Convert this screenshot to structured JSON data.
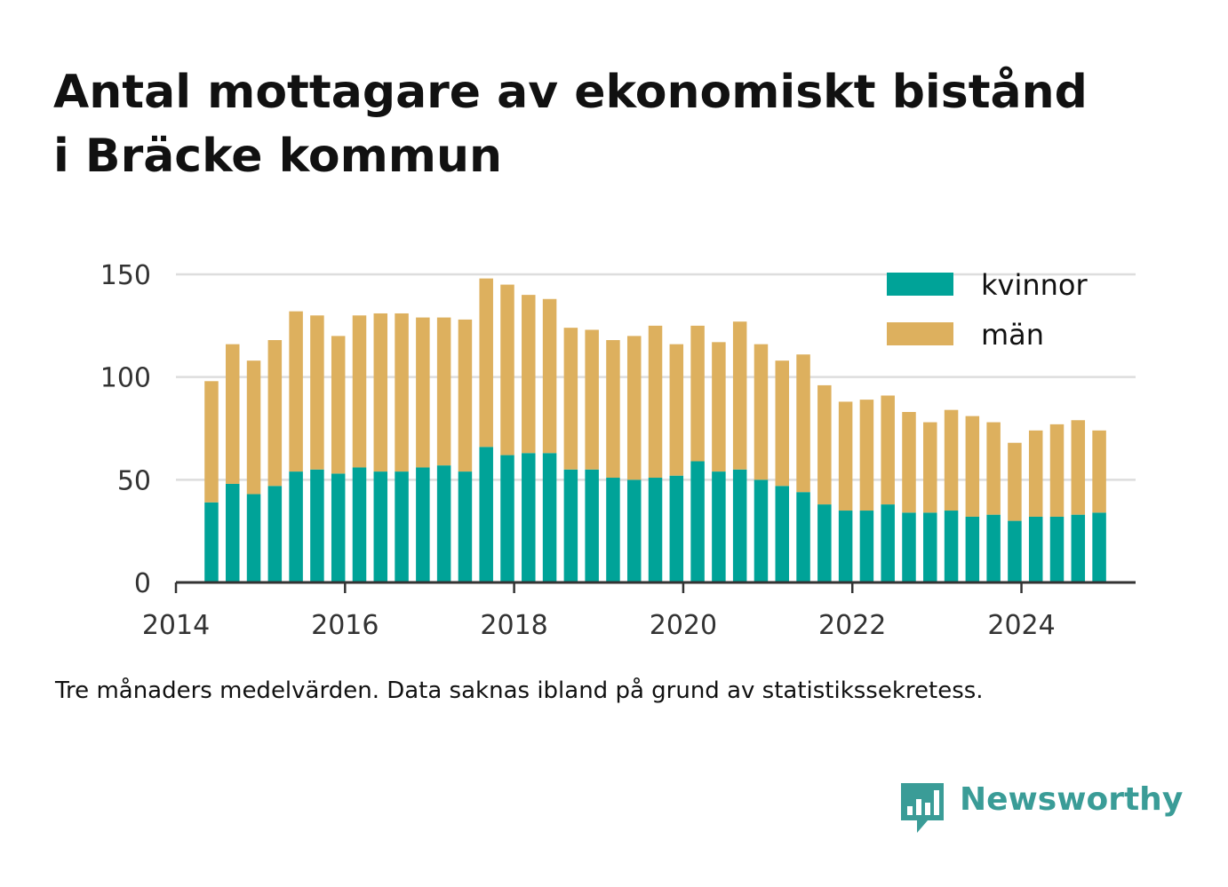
{
  "title_line1": "Antal mottagare av ekonomiskt bistånd",
  "title_line2": "i Bräcke kommun",
  "note": "Tre månaders medelvärden. Data saknas ibland på grund av statistikssekretess.",
  "brand": "Newsworthy",
  "chart_data": {
    "type": "bar",
    "stacked": true,
    "x": [
      2014.42,
      2014.67,
      2014.92,
      2015.17,
      2015.42,
      2015.67,
      2015.92,
      2016.17,
      2016.42,
      2016.67,
      2016.92,
      2017.17,
      2017.42,
      2017.67,
      2017.92,
      2018.17,
      2018.42,
      2018.67,
      2018.92,
      2019.17,
      2019.42,
      2019.67,
      2019.92,
      2020.17,
      2020.42,
      2020.67,
      2020.92,
      2021.17,
      2021.42,
      2021.67,
      2021.92,
      2022.17,
      2022.42,
      2022.67,
      2022.92,
      2023.17,
      2023.42,
      2023.67,
      2023.92,
      2024.17,
      2024.42,
      2024.67,
      2024.92
    ],
    "series": [
      {
        "name": "kvinnor",
        "color": "#00a398",
        "values": [
          39,
          48,
          43,
          47,
          54,
          55,
          53,
          56,
          54,
          54,
          56,
          57,
          54,
          66,
          62,
          63,
          63,
          55,
          55,
          51,
          50,
          51,
          52,
          59,
          54,
          55,
          50,
          47,
          44,
          38,
          35,
          35,
          38,
          34,
          34,
          35,
          32,
          33,
          30,
          32,
          32,
          33,
          34
        ]
      },
      {
        "name": "män",
        "color": "#ddb05e",
        "values": [
          59,
          68,
          65,
          71,
          78,
          75,
          67,
          74,
          77,
          77,
          73,
          72,
          74,
          82,
          83,
          77,
          75,
          69,
          68,
          67,
          70,
          74,
          64,
          66,
          63,
          72,
          66,
          61,
          67,
          58,
          53,
          54,
          53,
          49,
          44,
          49,
          49,
          45,
          38,
          42,
          45,
          46,
          40
        ]
      }
    ],
    "xticks": [
      "2014",
      "2016",
      "2018",
      "2020",
      "2022",
      "2024"
    ],
    "yticks": [
      0,
      50,
      100,
      150
    ],
    "xlim": [
      2014.0,
      2025.35
    ],
    "ylim": [
      0,
      150
    ],
    "grid": true,
    "legend": "top-right"
  }
}
